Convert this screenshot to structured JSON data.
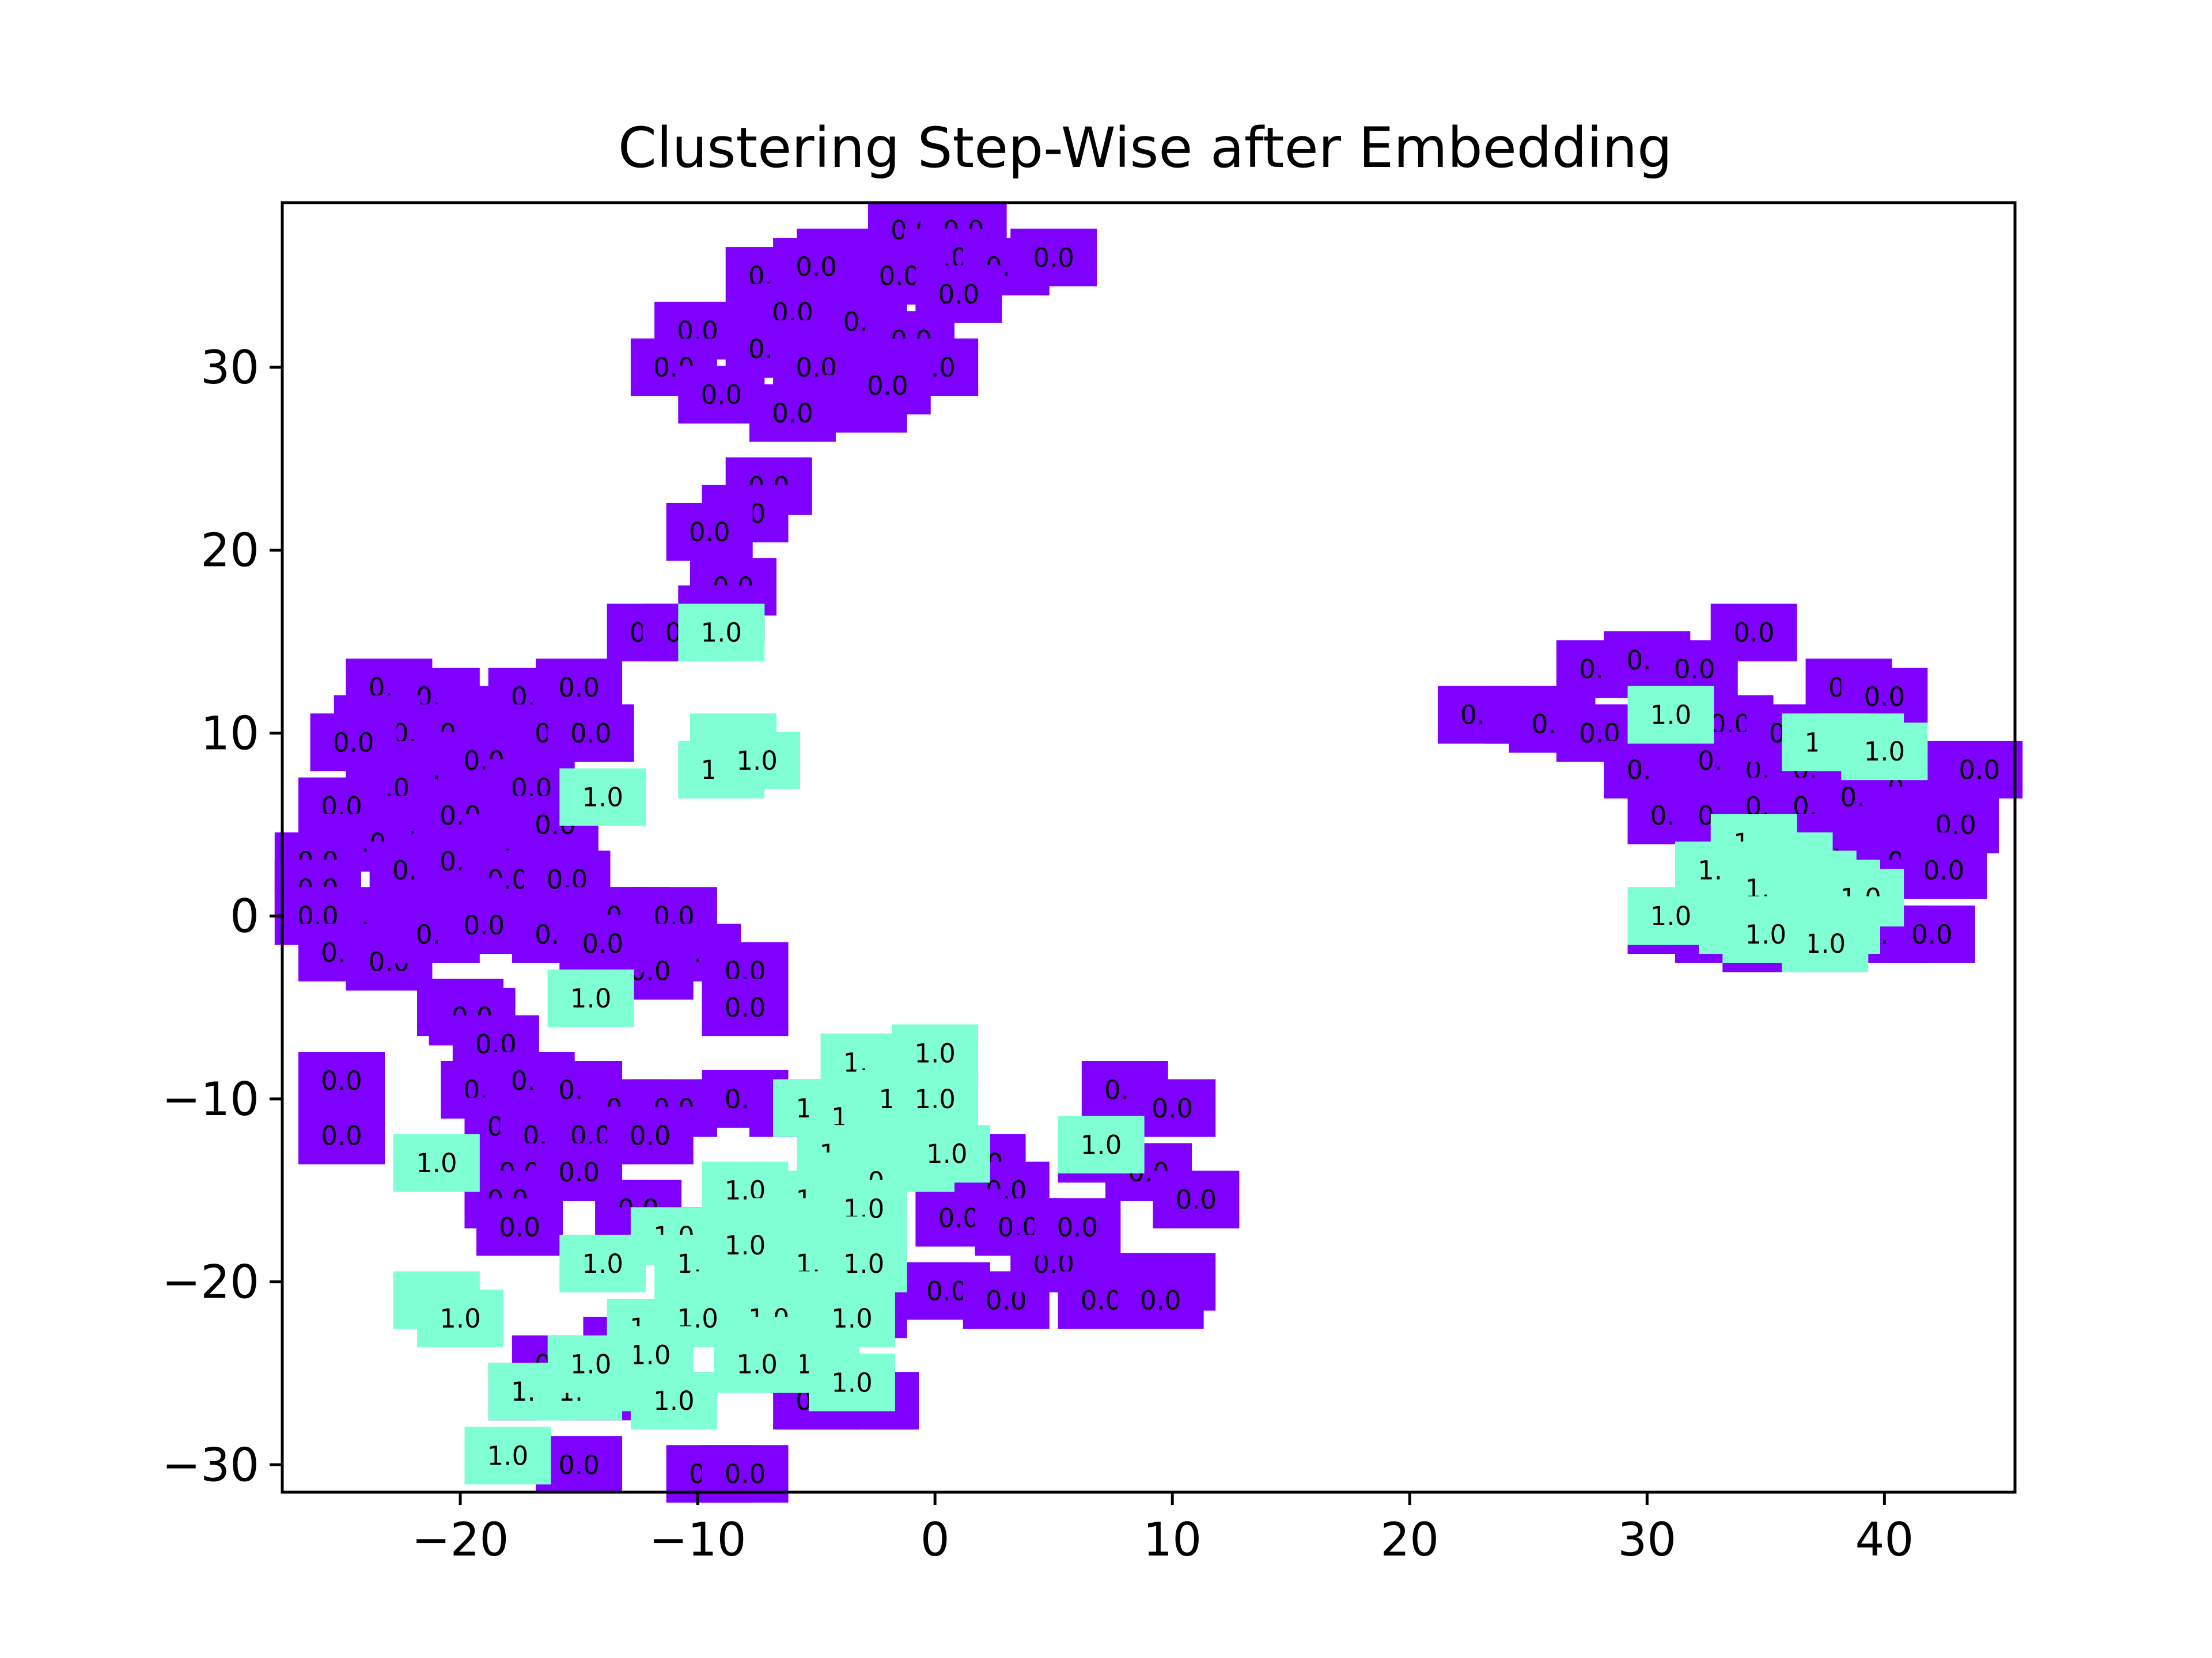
{
  "chart_data": {
    "type": "scatter",
    "title": "Clustering Step-Wise after Embedding",
    "xlabel": "",
    "ylabel": "",
    "xlim": [
      -27.5,
      45.5
    ],
    "ylim": [
      -31.5,
      39
    ],
    "xticks": [
      -20,
      -10,
      0,
      10,
      20,
      30,
      40
    ],
    "yticks": [
      -30,
      -20,
      -10,
      0,
      10,
      20,
      30
    ],
    "grid": false,
    "legend": "none",
    "box_label_style": "each point is a text label drawn on a box colored by its label",
    "colors": {
      "0.0": "#7f00ff",
      "1.0": "#80ffd4"
    },
    "series": [
      {
        "label": "0.0",
        "points": [
          [
            -1,
            37.5
          ],
          [
            1.2,
            37.5
          ],
          [
            -4,
            36
          ],
          [
            0.5,
            36
          ],
          [
            3,
            35.5
          ],
          [
            5,
            36
          ],
          [
            -7,
            35
          ],
          [
            -5,
            35.5
          ],
          [
            -1.5,
            35
          ],
          [
            1,
            34
          ],
          [
            -8,
            32
          ],
          [
            -6,
            33
          ],
          [
            -3,
            32.5
          ],
          [
            -1,
            31.5
          ],
          [
            -10,
            32
          ],
          [
            -7,
            31
          ],
          [
            -11,
            30
          ],
          [
            -5,
            30
          ],
          [
            -2,
            30
          ],
          [
            0,
            30
          ],
          [
            -9,
            28.5
          ],
          [
            -6,
            27.5
          ],
          [
            -3,
            28
          ],
          [
            -2,
            29
          ],
          [
            -7,
            23.5
          ],
          [
            -8,
            22
          ],
          [
            -9.5,
            21
          ],
          [
            -8.5,
            18
          ],
          [
            -9,
            16.5
          ],
          [
            -12,
            15.5
          ],
          [
            -10.5,
            15.5
          ],
          [
            -23,
            12.5
          ],
          [
            -21,
            12
          ],
          [
            -19,
            11
          ],
          [
            -17,
            12
          ],
          [
            -15,
            12.5
          ],
          [
            -23.5,
            10.5
          ],
          [
            -22,
            10
          ],
          [
            -20,
            10
          ],
          [
            -18,
            9.5
          ],
          [
            -16,
            10
          ],
          [
            -14.5,
            10
          ],
          [
            -24.5,
            9.5
          ],
          [
            -21,
            8
          ],
          [
            -19,
            8.5
          ],
          [
            -17,
            7
          ],
          [
            -23,
            7
          ],
          [
            -25,
            6
          ],
          [
            -22,
            5
          ],
          [
            -20,
            5.5
          ],
          [
            -18,
            4
          ],
          [
            -16,
            5
          ],
          [
            -24,
            4
          ],
          [
            -26,
            3
          ],
          [
            -22,
            2.5
          ],
          [
            -20,
            3
          ],
          [
            -18,
            2
          ],
          [
            -15.5,
            2
          ],
          [
            -26,
            1.5
          ],
          [
            -24,
            0
          ],
          [
            -22,
            0
          ],
          [
            -20,
            0.5
          ],
          [
            -17,
            -0.5
          ],
          [
            -14,
            0
          ],
          [
            -26,
            0
          ],
          [
            -25,
            -2
          ],
          [
            -23,
            -2.5
          ],
          [
            -21,
            -1
          ],
          [
            -19,
            -0.5
          ],
          [
            -16,
            -1
          ],
          [
            -13,
            -2
          ],
          [
            -13,
            0
          ],
          [
            -11,
            0
          ],
          [
            -10,
            -2
          ],
          [
            -12,
            -3
          ],
          [
            -8,
            -3
          ],
          [
            -8,
            -5
          ],
          [
            -14,
            -1.5
          ],
          [
            -20,
            -5
          ],
          [
            -19.5,
            -5.5
          ],
          [
            -18.5,
            -7
          ],
          [
            -19,
            -9.5
          ],
          [
            -17,
            -9
          ],
          [
            -15,
            -9.5
          ],
          [
            -13,
            -10.5
          ],
          [
            -11,
            -10.5
          ],
          [
            -18,
            -11.5
          ],
          [
            -16.5,
            -12
          ],
          [
            -14.5,
            -12
          ],
          [
            -12,
            -12
          ],
          [
            -17.5,
            -14
          ],
          [
            -15,
            -14
          ],
          [
            -12.5,
            -16
          ],
          [
            -18,
            -15.5
          ],
          [
            -17.5,
            -17
          ],
          [
            -11.5,
            -17.5
          ],
          [
            -25,
            -9
          ],
          [
            -25,
            -12
          ],
          [
            -8,
            -10
          ],
          [
            -6,
            -10.5
          ],
          [
            -16,
            -24.5
          ],
          [
            -13,
            -23.5
          ],
          [
            -17,
            -26
          ],
          [
            -14,
            -26
          ],
          [
            -15,
            -30
          ],
          [
            -9.5,
            -30.5
          ],
          [
            -8,
            -30.5
          ],
          [
            -5,
            -26.5
          ],
          [
            -2.5,
            -26.5
          ],
          [
            -3,
            -21.5
          ],
          [
            -7,
            -23.5
          ],
          [
            -9,
            -21
          ],
          [
            2,
            -13.5
          ],
          [
            3,
            -15
          ],
          [
            1,
            -16.5
          ],
          [
            3.5,
            -17
          ],
          [
            0.5,
            -20.5
          ],
          [
            3,
            -21
          ],
          [
            5,
            -19
          ],
          [
            8,
            -9.5
          ],
          [
            10,
            -10.5
          ],
          [
            7,
            -13
          ],
          [
            9,
            -14
          ],
          [
            11,
            -15.5
          ],
          [
            6,
            -17
          ],
          [
            8,
            -20
          ],
          [
            10,
            -20
          ],
          [
            7,
            -21
          ],
          [
            9.5,
            -21
          ],
          [
            23,
            11
          ],
          [
            25,
            11
          ],
          [
            26,
            10.5
          ],
          [
            28,
            10
          ],
          [
            28,
            13.5
          ],
          [
            30,
            14
          ],
          [
            32,
            13.5
          ],
          [
            34.5,
            15.5
          ],
          [
            33.5,
            10.5
          ],
          [
            30,
            8
          ],
          [
            32,
            7.5
          ],
          [
            33,
            8.5
          ],
          [
            35,
            8
          ],
          [
            37,
            8
          ],
          [
            38.5,
            12.5
          ],
          [
            40,
            12
          ],
          [
            36,
            10
          ],
          [
            31,
            5.5
          ],
          [
            33,
            5.5
          ],
          [
            35,
            6
          ],
          [
            37,
            6
          ],
          [
            39,
            6.5
          ],
          [
            41,
            7
          ],
          [
            43,
            8
          ],
          [
            44,
            8
          ],
          [
            42,
            5.5
          ],
          [
            43,
            5
          ],
          [
            38,
            4
          ],
          [
            40,
            3.5
          ],
          [
            41,
            3
          ],
          [
            42.5,
            2.5
          ],
          [
            37.5,
            1.5
          ],
          [
            39,
            1.5
          ],
          [
            31,
            -0.5
          ],
          [
            33,
            -1
          ],
          [
            35,
            -1.5
          ],
          [
            40,
            -1
          ],
          [
            42,
            -1
          ]
        ]
      },
      {
        "label": "1.0",
        "points": [
          [
            -9,
            15.5
          ],
          [
            -8.5,
            9.5
          ],
          [
            -9,
            8
          ],
          [
            -7.5,
            8.5
          ],
          [
            -14,
            6.5
          ],
          [
            -14.5,
            -4.5
          ],
          [
            -3,
            -8
          ],
          [
            -1,
            -8.5
          ],
          [
            0,
            -7.5
          ],
          [
            -5,
            -10.5
          ],
          [
            -3.5,
            -11
          ],
          [
            -1.5,
            -10
          ],
          [
            0,
            -10
          ],
          [
            -4,
            -13
          ],
          [
            -2,
            -12.5
          ],
          [
            -1,
            -13.5
          ],
          [
            0.5,
            -13
          ],
          [
            -3,
            -14.5
          ],
          [
            -8,
            -15
          ],
          [
            -5,
            -15.5
          ],
          [
            -3,
            -16
          ],
          [
            -11,
            -17.5
          ],
          [
            -6,
            -17
          ],
          [
            -4.5,
            -18
          ],
          [
            -14,
            -19
          ],
          [
            -10,
            -19
          ],
          [
            -8,
            -18
          ],
          [
            -5,
            -19
          ],
          [
            -3,
            -19
          ],
          [
            -8.5,
            -21
          ],
          [
            -5.5,
            -21
          ],
          [
            -3.5,
            -22
          ],
          [
            -12,
            -22.5
          ],
          [
            -10,
            -22
          ],
          [
            -7,
            -22
          ],
          [
            -6,
            -23.5
          ],
          [
            -5,
            -24.5
          ],
          [
            -3.5,
            -25.5
          ],
          [
            -7.5,
            -24.5
          ],
          [
            -21,
            -21
          ],
          [
            -20,
            -22
          ],
          [
            -21,
            -13.5
          ],
          [
            -17,
            -26
          ],
          [
            -15,
            -26
          ],
          [
            -13,
            -25.5
          ],
          [
            -11,
            -26.5
          ],
          [
            -12,
            -24
          ],
          [
            -18,
            -29.5
          ],
          [
            -14.5,
            -24.5
          ],
          [
            7,
            -12.5
          ],
          [
            31,
            11
          ],
          [
            37.5,
            9.5
          ],
          [
            39,
            9.5
          ],
          [
            40,
            9
          ],
          [
            34.5,
            4
          ],
          [
            36,
            3
          ],
          [
            33,
            2.5
          ],
          [
            35,
            1.5
          ],
          [
            37,
            2
          ],
          [
            38,
            1.5
          ],
          [
            39,
            1
          ],
          [
            31,
            0
          ],
          [
            34,
            -0.5
          ],
          [
            35.5,
            -0.5
          ],
          [
            38,
            -0.5
          ],
          [
            37.5,
            -1.5
          ],
          [
            35,
            -1
          ]
        ]
      }
    ]
  }
}
